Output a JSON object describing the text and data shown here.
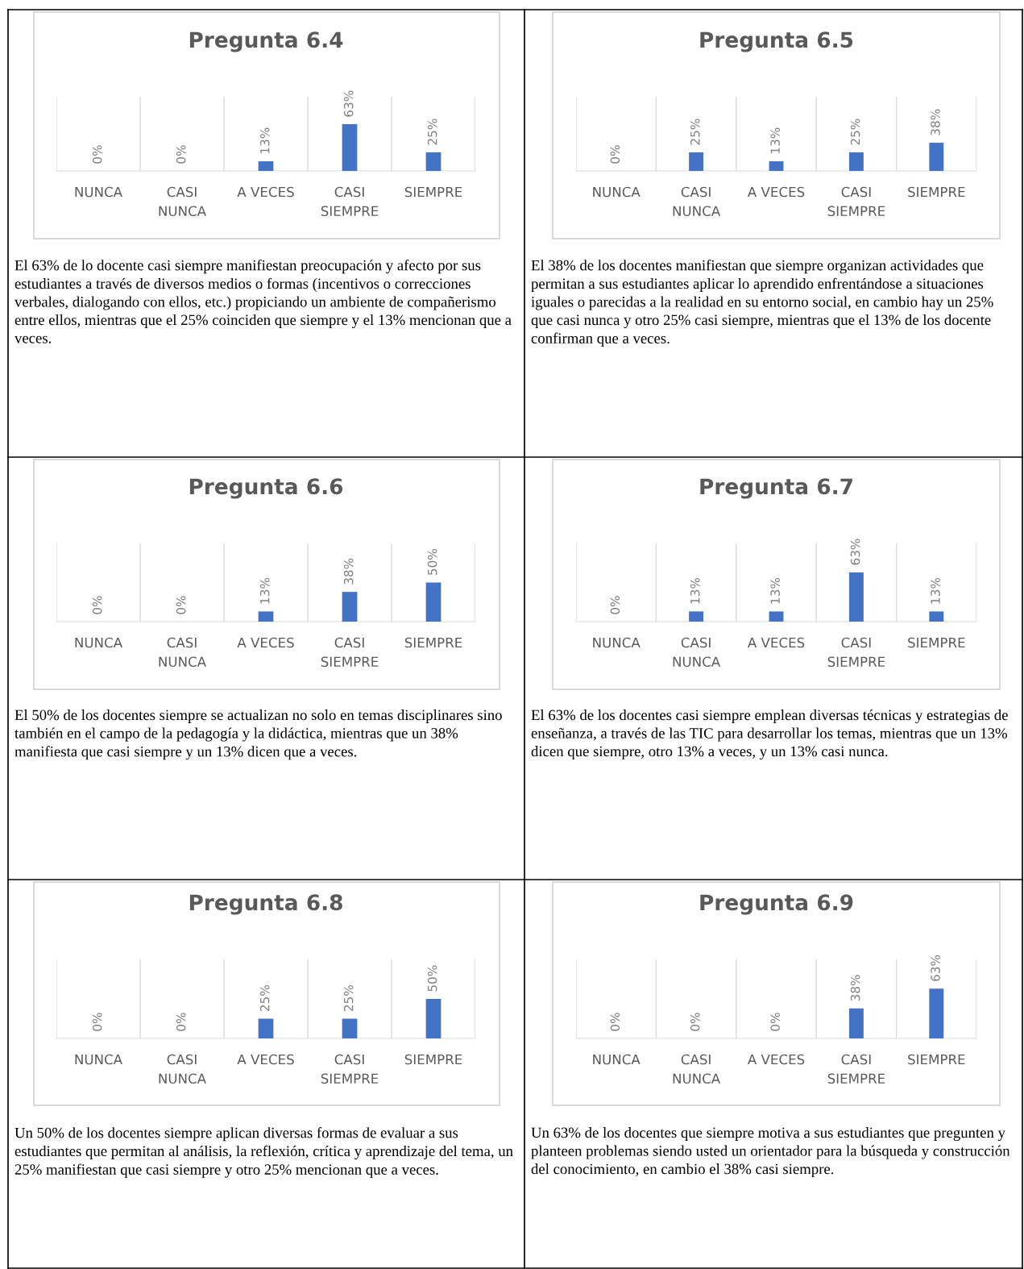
{
  "chart_data": [
    {
      "type": "bar",
      "title": "Pregunta 6.4",
      "categories": [
        "NUNCA",
        "CASI\nNUNCA",
        "A VECES",
        "CASI\nSIEMPRE",
        "SIEMPRE"
      ],
      "values": [
        0,
        0,
        13,
        63,
        25
      ],
      "value_labels": [
        "0%",
        "0%",
        "13%",
        "63%",
        "25%"
      ],
      "color": "#4472c4",
      "ylim": [
        0,
        100
      ],
      "grid": "x",
      "tick_labels": "x",
      "annotations": [
        "El 63% de lo docente casi siempre manifiestan preocupación y afecto por sus estudiantes a través de diversos medios o formas (incentivos o correcciones verbales, dialogando con ellos, etc.) propiciando un ambiente de compañerismo entre ellos, mientras que el 25% coinciden que siempre y el 13% mencionan que a veces."
      ]
    },
    {
      "type": "bar",
      "title": "Pregunta 6.5",
      "categories": [
        "NUNCA",
        "CASI\nNUNCA",
        "A VECES",
        "CASI\nSIEMPRE",
        "SIEMPRE"
      ],
      "values": [
        0,
        25,
        13,
        25,
        38
      ],
      "value_labels": [
        "0%",
        "25%",
        "13%",
        "25%",
        "38%"
      ],
      "color": "#4472c4",
      "ylim": [
        0,
        100
      ],
      "grid": "x",
      "tick_labels": "x",
      "annotations": [
        "El 38% de los docentes manifiestan que siempre organizan actividades que permitan a sus estudiantes aplicar lo aprendido enfrentándose a situaciones iguales o parecidas a la realidad en su entorno social, en cambio hay un 25% que casi nunca y otro 25% casi siempre, mientras que el 13% de los docente confirman que a veces."
      ]
    },
    {
      "type": "bar",
      "title": "Pregunta 6.6",
      "categories": [
        "NUNCA",
        "CASI\nNUNCA",
        "A VECES",
        "CASI\nSIEMPRE",
        "SIEMPRE"
      ],
      "values": [
        0,
        0,
        13,
        38,
        50
      ],
      "value_labels": [
        "0%",
        "0%",
        "13%",
        "38%",
        "50%"
      ],
      "color": "#4472c4",
      "ylim": [
        0,
        100
      ],
      "grid": "x",
      "tick_labels": "x",
      "annotations": [
        "El 50% de los docentes siempre se actualizan no solo en temas disciplinares sino también en el campo de la pedagogía y la didáctica, mientras que un 38% manifiesta que casi siempre y un 13% dicen que a veces."
      ]
    },
    {
      "type": "bar",
      "title": "Pregunta 6.7",
      "categories": [
        "NUNCA",
        "CASI\nNUNCA",
        "A VECES",
        "CASI\nSIEMPRE",
        "SIEMPRE"
      ],
      "values": [
        0,
        13,
        13,
        63,
        13
      ],
      "value_labels": [
        "0%",
        "13%",
        "13%",
        "63%",
        "13%"
      ],
      "color": "#4472c4",
      "ylim": [
        0,
        100
      ],
      "grid": "x",
      "tick_labels": "x",
      "annotations": [
        "El 63% de los docentes casi siempre emplean diversas técnicas y estrategias de enseñanza, a través de las TIC para desarrollar los temas, mientras que un 13% dicen que siempre, otro 13% a veces, y un 13% casi nunca."
      ]
    },
    {
      "type": "bar",
      "title": "Pregunta 6.8",
      "categories": [
        "NUNCA",
        "CASI\nNUNCA",
        "A VECES",
        "CASI\nSIEMPRE",
        "SIEMPRE"
      ],
      "values": [
        0,
        0,
        25,
        25,
        50
      ],
      "value_labels": [
        "0%",
        "0%",
        "25%",
        "25%",
        "50%"
      ],
      "color": "#4472c4",
      "ylim": [
        0,
        100
      ],
      "grid": "x",
      "tick_labels": "x",
      "annotations": [
        "Un 50% de los docentes siempre aplican diversas formas de evaluar a sus estudiantes que permitan al análisis, la reflexión, crítica y aprendizaje del tema, un 25% manifiestan que casi siempre y otro 25% mencionan que a veces."
      ]
    },
    {
      "type": "bar",
      "title": "Pregunta 6.9",
      "categories": [
        "NUNCA",
        "CASI\nNUNCA",
        "A VECES",
        "CASI\nSIEMPRE",
        "SIEMPRE"
      ],
      "values": [
        0,
        0,
        0,
        38,
        63
      ],
      "value_labels": [
        "0%",
        "0%",
        "0%",
        "38%",
        "63%"
      ],
      "color": "#4472c4",
      "ylim": [
        0,
        100
      ],
      "grid": "x",
      "tick_labels": "x",
      "annotations": [
        "Un 63% de los docentes que siempre motiva a sus estudiantes que pregunten y planteen problemas siendo usted un orientador para la búsqueda y construcción del conocimiento, en cambio el 38% casi siempre."
      ]
    }
  ]
}
